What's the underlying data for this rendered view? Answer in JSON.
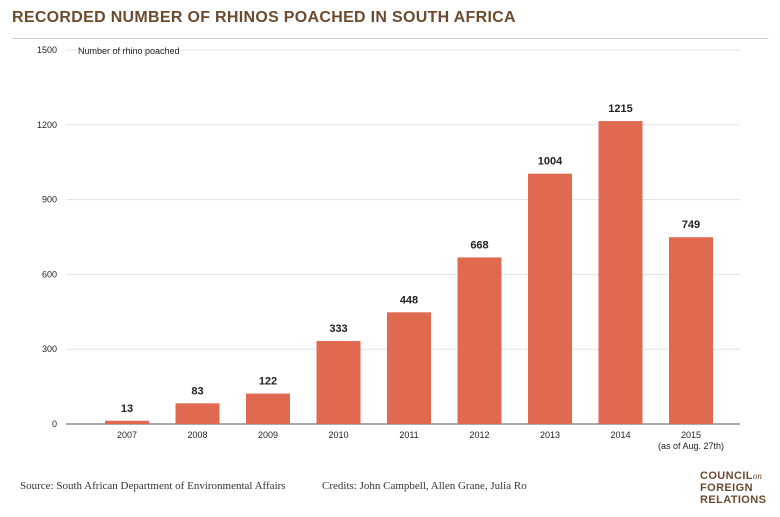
{
  "title": "RECORDED NUMBER OF RHINOS POACHED IN SOUTH AFRICA",
  "source": "Source: South African Department of Environmental Affairs",
  "credits": "Credits: John Campbell, Allen Grane, Julia Ro",
  "logo": {
    "line1": "COUNCIL",
    "on": "on",
    "line2": "FOREIGN",
    "line3": "RELATIONS"
  },
  "colors": {
    "bar": "#e06a50",
    "title": "#6b4a2e",
    "grid": "#e3e3e3",
    "axis": "#555555"
  },
  "chart_data": {
    "type": "bar",
    "title": "RECORDED NUMBER OF RHINOS POACHED IN SOUTH AFRICA",
    "ylabel": "Number of rhino poached",
    "xlabel": "",
    "categories": [
      "2007",
      "2008",
      "2009",
      "2010",
      "2011",
      "2012",
      "2013",
      "2014",
      "2015"
    ],
    "category_sublabels": [
      "",
      "",
      "",
      "",
      "",
      "",
      "",
      "",
      "(as of Aug. 27th)"
    ],
    "values": [
      13,
      83,
      122,
      333,
      448,
      668,
      1004,
      1215,
      749
    ],
    "data_labels": [
      "13",
      "83",
      "122",
      "333",
      "448",
      "668",
      "1004",
      "1215",
      "749"
    ],
    "ylim": [
      0,
      1500
    ],
    "yticks": [
      0,
      300,
      600,
      900,
      1200,
      1500
    ],
    "grid": true,
    "legend": false
  }
}
